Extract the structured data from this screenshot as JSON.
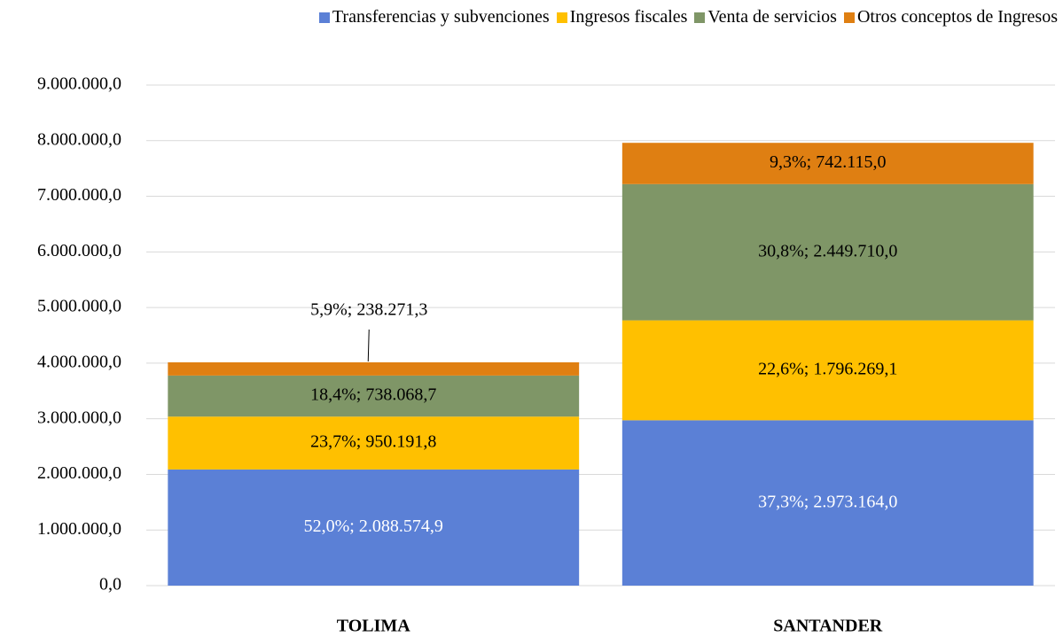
{
  "chart_data": {
    "type": "stacked_bar",
    "categories": [
      "TOLIMA",
      "SANTANDER"
    ],
    "series": [
      {
        "name": "Transferencias y subvenciones",
        "color": "#5b80d6",
        "label_color": "#ffffff",
        "values": [
          2088574.9,
          2973164.0
        ],
        "value_labels": [
          "52,0%; 2.088.574,9",
          "37,3%; 2.973.164,0"
        ]
      },
      {
        "name": "Ingresos fiscales",
        "color": "#ffc000",
        "label_color": "#000000",
        "values": [
          950191.8,
          1796269.1
        ],
        "value_labels": [
          "23,7%; 950.191,8",
          "22,6%; 1.796.269,1"
        ]
      },
      {
        "name": "Venta de servicios",
        "color": "#7f9667",
        "label_color": "#000000",
        "values": [
          738068.7,
          2449710.0
        ],
        "value_labels": [
          "18,4%; 738.068,7",
          "30,8%; 2.449.710,0"
        ]
      },
      {
        "name": "Otros conceptos de Ingresos",
        "color": "#df7f12",
        "label_color": "#000000",
        "values": [
          238271.3,
          742115.0
        ],
        "value_labels": [
          "5,9%; 238.271,3",
          "9,3%; 742.115,0"
        ]
      }
    ],
    "ylim": [
      0,
      9000000
    ],
    "yticks": [
      {
        "value": 0,
        "label": "0,0"
      },
      {
        "value": 1000000,
        "label": "1.000.000,0"
      },
      {
        "value": 2000000,
        "label": "2.000.000,0"
      },
      {
        "value": 3000000,
        "label": "3.000.000,0"
      },
      {
        "value": 4000000,
        "label": "4.000.000,0"
      },
      {
        "value": 5000000,
        "label": "5.000.000,0"
      },
      {
        "value": 6000000,
        "label": "6.000.000,0"
      },
      {
        "value": 7000000,
        "label": "7.000.000,0"
      },
      {
        "value": 8000000,
        "label": "8.000.000,0"
      },
      {
        "value": 9000000,
        "label": "9.000.000,0"
      }
    ],
    "grid": true,
    "legend": "top"
  }
}
